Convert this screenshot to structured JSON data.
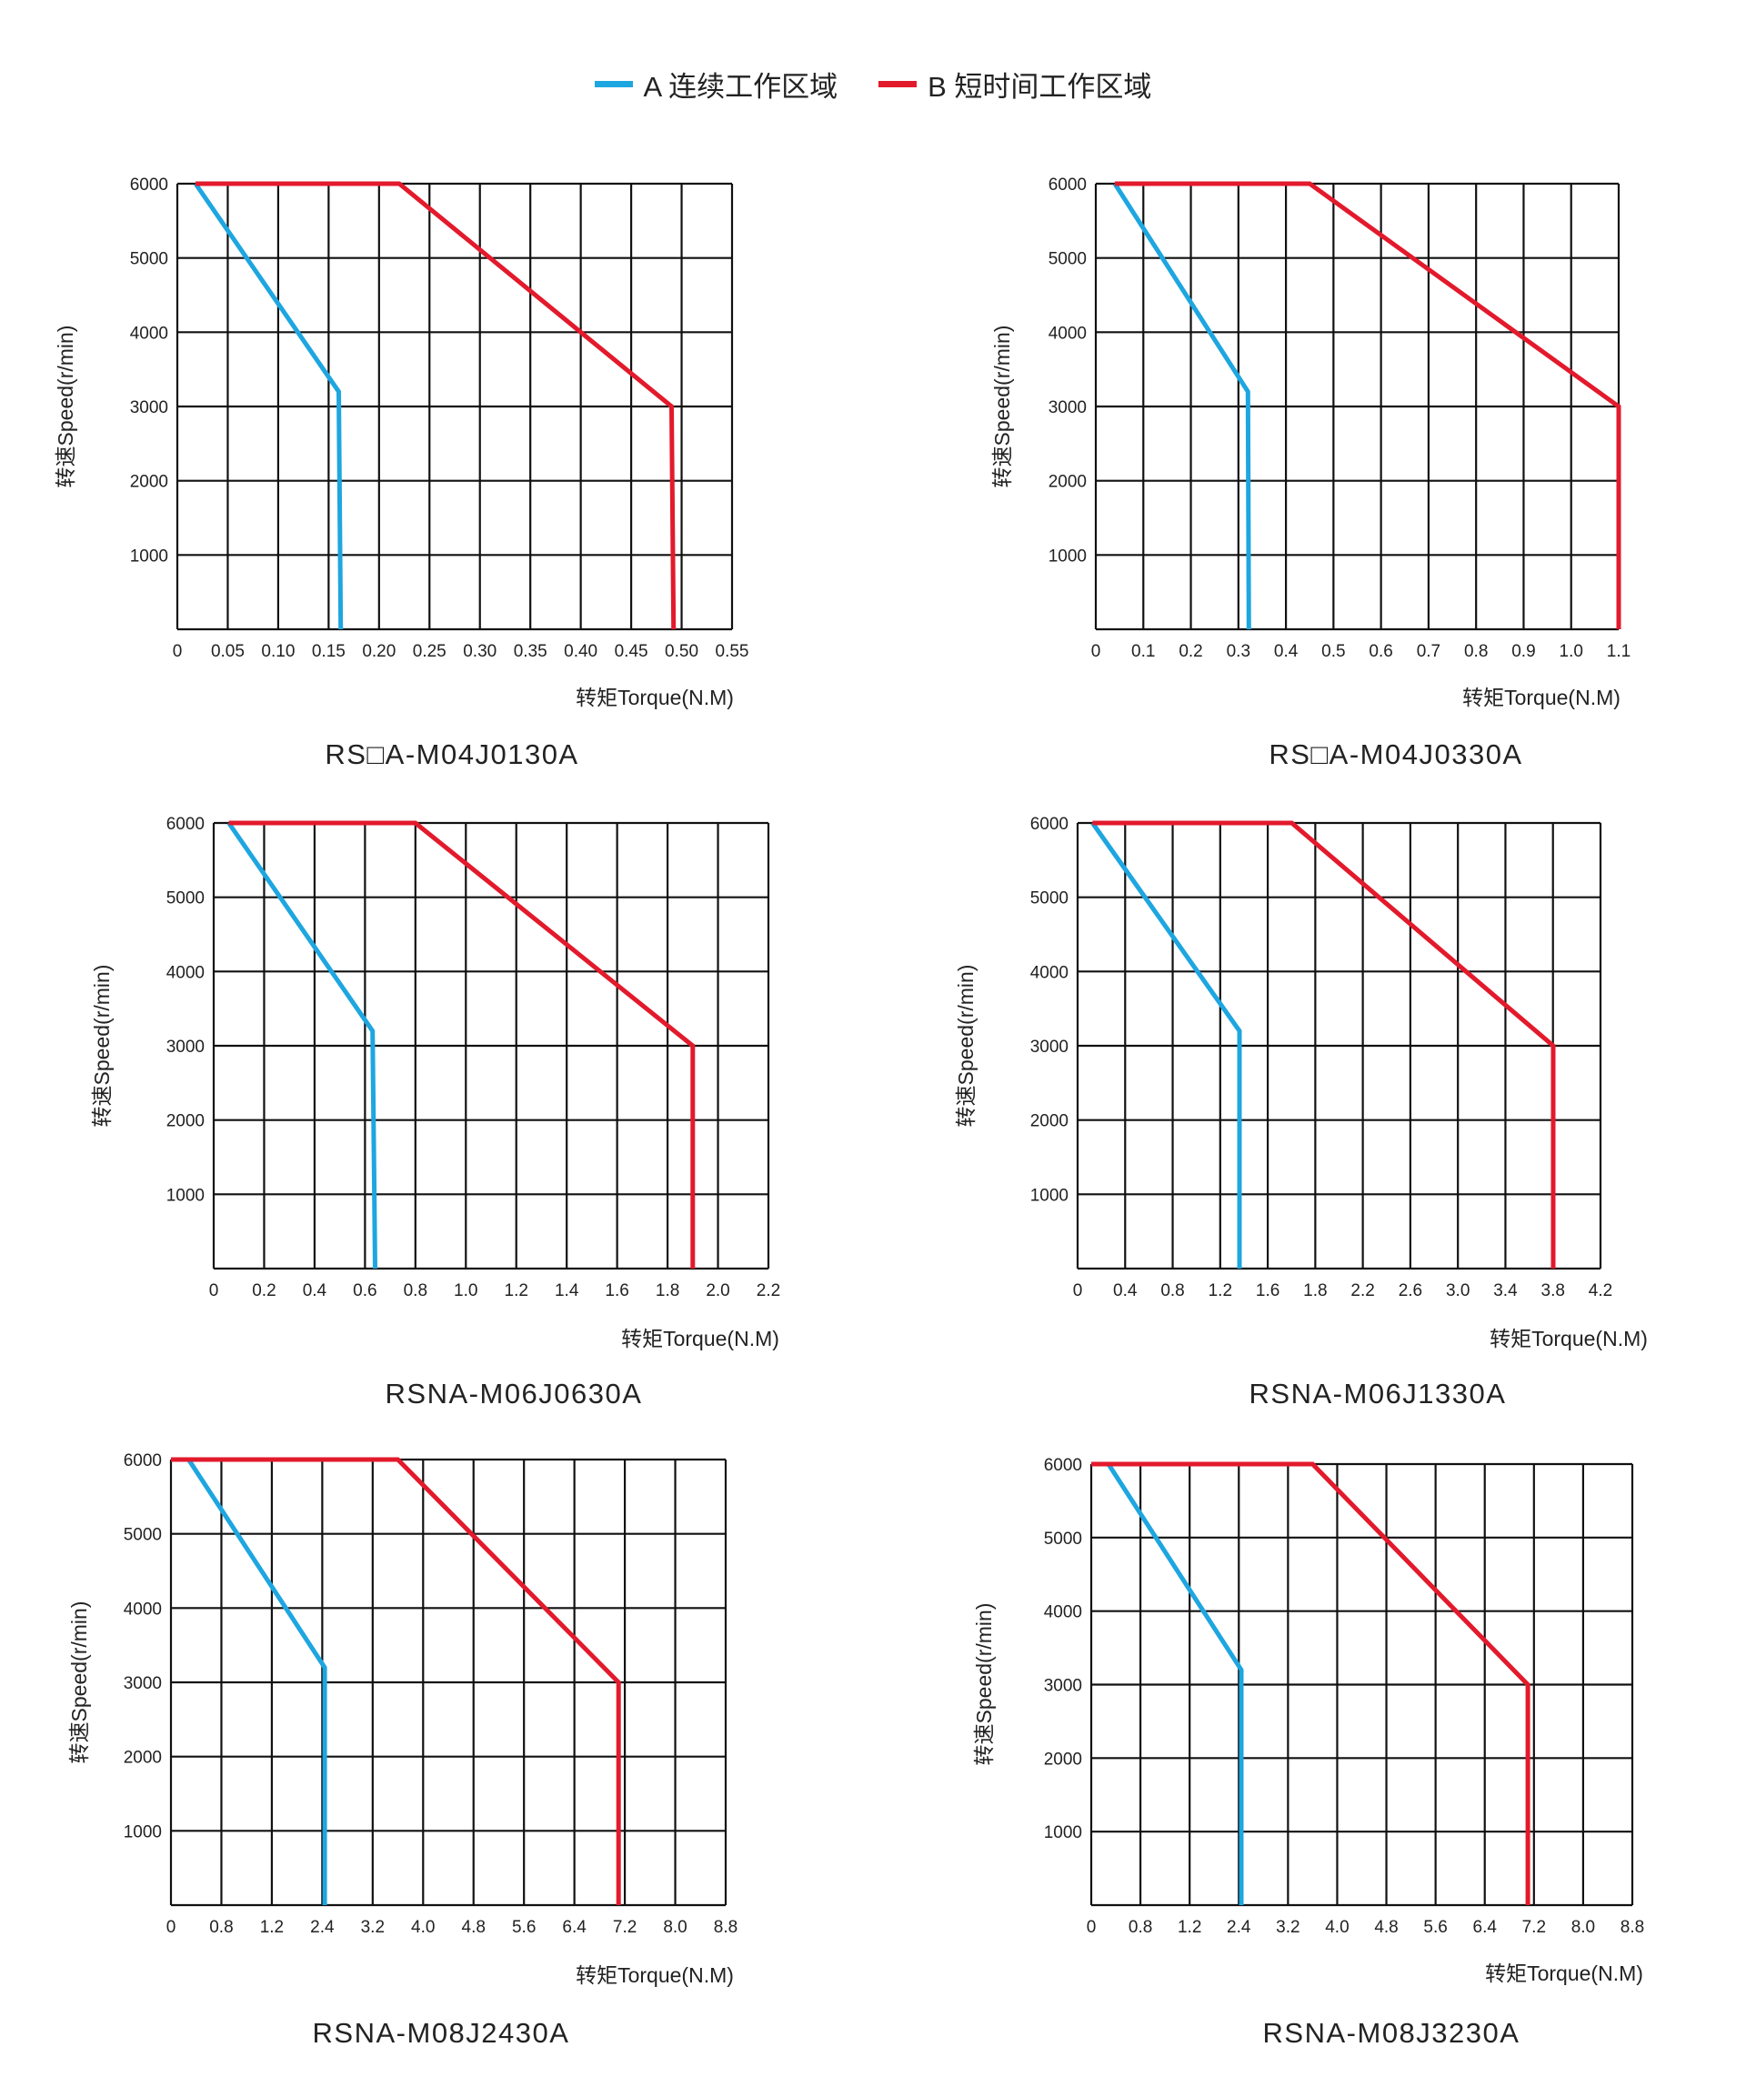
{
  "legend": [
    {
      "label": "A 连续工作区域",
      "color": "#1ea6e0"
    },
    {
      "label": "B 短时间工作区域",
      "color": "#e21a2c"
    }
  ],
  "chart_data": [
    {
      "type": "line",
      "model": "RS□A-M04J0130A",
      "xlabel": "转矩Torque(N.M)",
      "ylabel": "转速Speed(r/min)",
      "xlim": [
        0,
        0.55
      ],
      "ylim": [
        0,
        6000
      ],
      "x_ticks": [
        "0",
        "0.05",
        "0.10",
        "0.15",
        "0.20",
        "0.25",
        "0.30",
        "0.35",
        "0.40",
        "0.45",
        "0.50",
        "0.55"
      ],
      "y_ticks": [
        "1000",
        "2000",
        "3000",
        "4000",
        "5000",
        "6000"
      ],
      "grid": true,
      "series": [
        {
          "name": "A 连续工作区域",
          "color": "#1ea6e0",
          "points": [
            [
              0.018,
              6000
            ],
            [
              0.16,
              3200
            ],
            [
              0.162,
              0
            ]
          ]
        },
        {
          "name": "B 短时间工作区域",
          "color": "#e21a2c",
          "points": [
            [
              0.018,
              6000
            ],
            [
              0.22,
              6000
            ],
            [
              0.49,
              3000
            ],
            [
              0.492,
              0
            ]
          ]
        }
      ]
    },
    {
      "type": "line",
      "model": "RS□A-M04J0330A",
      "xlabel": "转矩Torque(N.M)",
      "ylabel": "转速Speed(r/min)",
      "xlim": [
        0,
        1.1
      ],
      "ylim": [
        0,
        6000
      ],
      "x_ticks": [
        "0",
        "0.1",
        "0.2",
        "0.3",
        "0.4",
        "0.5",
        "0.6",
        "0.7",
        "0.8",
        "0.9",
        "1.0",
        "1.1"
      ],
      "y_ticks": [
        "1000",
        "2000",
        "3000",
        "4000",
        "5000",
        "6000"
      ],
      "grid": true,
      "series": [
        {
          "name": "A 连续工作区域",
          "color": "#1ea6e0",
          "points": [
            [
              0.04,
              6000
            ],
            [
              0.32,
              3200
            ],
            [
              0.322,
              0
            ]
          ]
        },
        {
          "name": "B 短时间工作区域",
          "color": "#e21a2c",
          "points": [
            [
              0.04,
              6000
            ],
            [
              0.45,
              6000
            ],
            [
              1.1,
              3000
            ],
            [
              1.1,
              0
            ]
          ]
        }
      ]
    },
    {
      "type": "line",
      "model": "RSNA-M06J0630A",
      "xlabel": "转矩Torque(N.M)",
      "ylabel": "转速Speed(r/min)",
      "xlim": [
        0,
        2.2
      ],
      "ylim": [
        0,
        6000
      ],
      "x_ticks": [
        "0",
        "0.2",
        "0.4",
        "0.6",
        "0.8",
        "1.0",
        "1.2",
        "1.4",
        "1.6",
        "1.8",
        "2.0",
        "2.2"
      ],
      "y_ticks": [
        "1000",
        "2000",
        "3000",
        "4000",
        "5000",
        "6000"
      ],
      "grid": true,
      "series": [
        {
          "name": "A 连续工作区域",
          "color": "#1ea6e0",
          "points": [
            [
              0.06,
              6000
            ],
            [
              0.63,
              3200
            ],
            [
              0.64,
              0
            ]
          ]
        },
        {
          "name": "B 短时间工作区域",
          "color": "#e21a2c",
          "points": [
            [
              0.06,
              6000
            ],
            [
              0.8,
              6000
            ],
            [
              1.9,
              3000
            ],
            [
              1.9,
              0
            ]
          ]
        }
      ]
    },
    {
      "type": "line",
      "model": "RSNA-M06J1330A",
      "xlabel": "转矩Torque(N.M)",
      "ylabel": "转速Speed(r/min)",
      "xlim": [
        0,
        4.2
      ],
      "ylim": [
        0,
        6000
      ],
      "x_ticks": [
        "0",
        "0.4",
        "0.8",
        "1.2",
        "1.6",
        "1.8",
        "2.2",
        "2.6",
        "3.0",
        "3.4",
        "3.8",
        "4.2"
      ],
      "y_ticks": [
        "1000",
        "2000",
        "3000",
        "4000",
        "5000",
        "6000"
      ],
      "grid": true,
      "series": [
        {
          "name": "A 连续工作区域",
          "color": "#1ea6e0",
          "points": [
            [
              0.12,
              6000
            ],
            [
              1.3,
              3200
            ],
            [
              1.3,
              0
            ]
          ]
        },
        {
          "name": "B 短时间工作区域",
          "color": "#e21a2c",
          "points": [
            [
              0.12,
              6000
            ],
            [
              1.72,
              6000
            ],
            [
              3.82,
              3000
            ],
            [
              3.82,
              0
            ]
          ]
        }
      ]
    },
    {
      "type": "line",
      "model": "RSNA-M08J2430A",
      "xlabel": "转矩Torque(N.M)",
      "ylabel": "转速Speed(r/min)",
      "xlim": [
        0,
        8.8
      ],
      "ylim": [
        0,
        6000
      ],
      "x_ticks": [
        "0",
        "0.8",
        "1.2",
        "2.4",
        "3.2",
        "4.0",
        "4.8",
        "5.6",
        "6.4",
        "7.2",
        "8.0",
        "8.8"
      ],
      "y_ticks": [
        "1000",
        "2000",
        "3000",
        "4000",
        "5000",
        "6000"
      ],
      "grid": true,
      "series": [
        {
          "name": "A 连续工作区域",
          "color": "#1ea6e0",
          "points": [
            [
              0.28,
              6000
            ],
            [
              2.44,
              3200
            ],
            [
              2.44,
              0
            ]
          ]
        },
        {
          "name": "B 短时间工作区域",
          "color": "#e21a2c",
          "points": [
            [
              0.0,
              6000
            ],
            [
              3.6,
              6000
            ],
            [
              7.1,
              3000
            ],
            [
              7.1,
              0
            ]
          ]
        }
      ]
    },
    {
      "type": "line",
      "model": "RSNA-M08J3230A",
      "xlabel": "转矩Torque(N.M)",
      "ylabel": "转速Speed(r/min)",
      "xlim": [
        0,
        8.8
      ],
      "ylim": [
        0,
        6000
      ],
      "x_ticks": [
        "0",
        "0.8",
        "1.2",
        "2.4",
        "3.2",
        "4.0",
        "4.8",
        "5.6",
        "6.4",
        "7.2",
        "8.0",
        "8.8"
      ],
      "y_ticks": [
        "1000",
        "2000",
        "3000",
        "4000",
        "5000",
        "6000"
      ],
      "grid": true,
      "series": [
        {
          "name": "A 连续工作区域",
          "color": "#1ea6e0",
          "points": [
            [
              0.28,
              6000
            ],
            [
              2.44,
              3200
            ],
            [
              2.44,
              0
            ]
          ]
        },
        {
          "name": "B 短时间工作区域",
          "color": "#e21a2c",
          "points": [
            [
              0.0,
              6000
            ],
            [
              3.6,
              6000
            ],
            [
              7.1,
              3000
            ],
            [
              7.1,
              0
            ]
          ]
        }
      ]
    }
  ]
}
